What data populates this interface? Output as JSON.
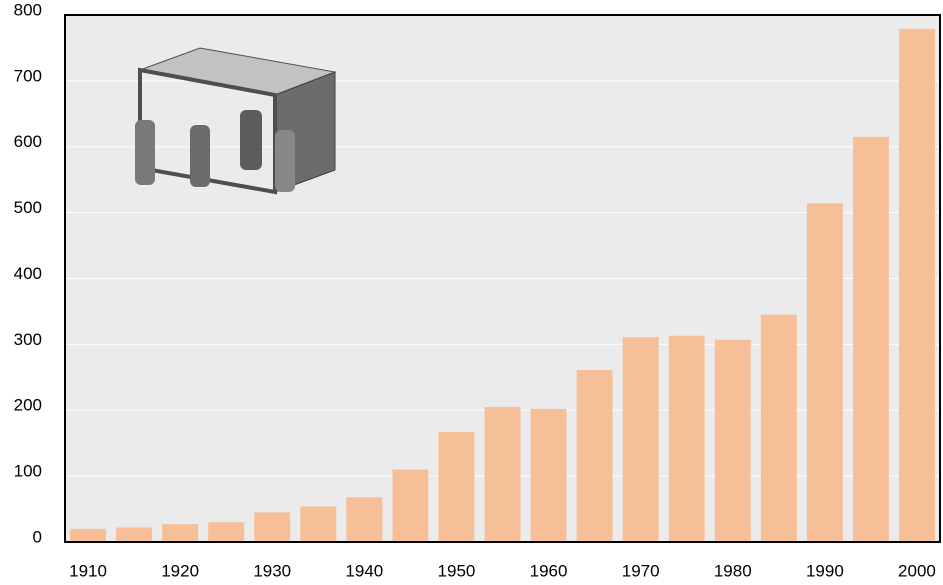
{
  "chart_data": {
    "type": "bar",
    "categories": [
      "1910",
      null,
      "1920",
      null,
      "1930",
      null,
      "1940",
      null,
      "1950",
      null,
      "1960",
      null,
      "1970",
      null,
      "1980",
      null,
      "1990",
      null,
      "2000"
    ],
    "values": [
      20,
      22,
      27,
      30,
      45,
      54,
      68,
      110,
      167,
      205,
      202,
      261,
      311,
      313,
      307,
      345,
      514,
      615,
      779
    ],
    "color": "#f7bf98",
    "ylim": [
      0,
      800
    ],
    "yticks": [
      0,
      100,
      200,
      300,
      400,
      500,
      600,
      700,
      800
    ],
    "grid": true
  }
}
